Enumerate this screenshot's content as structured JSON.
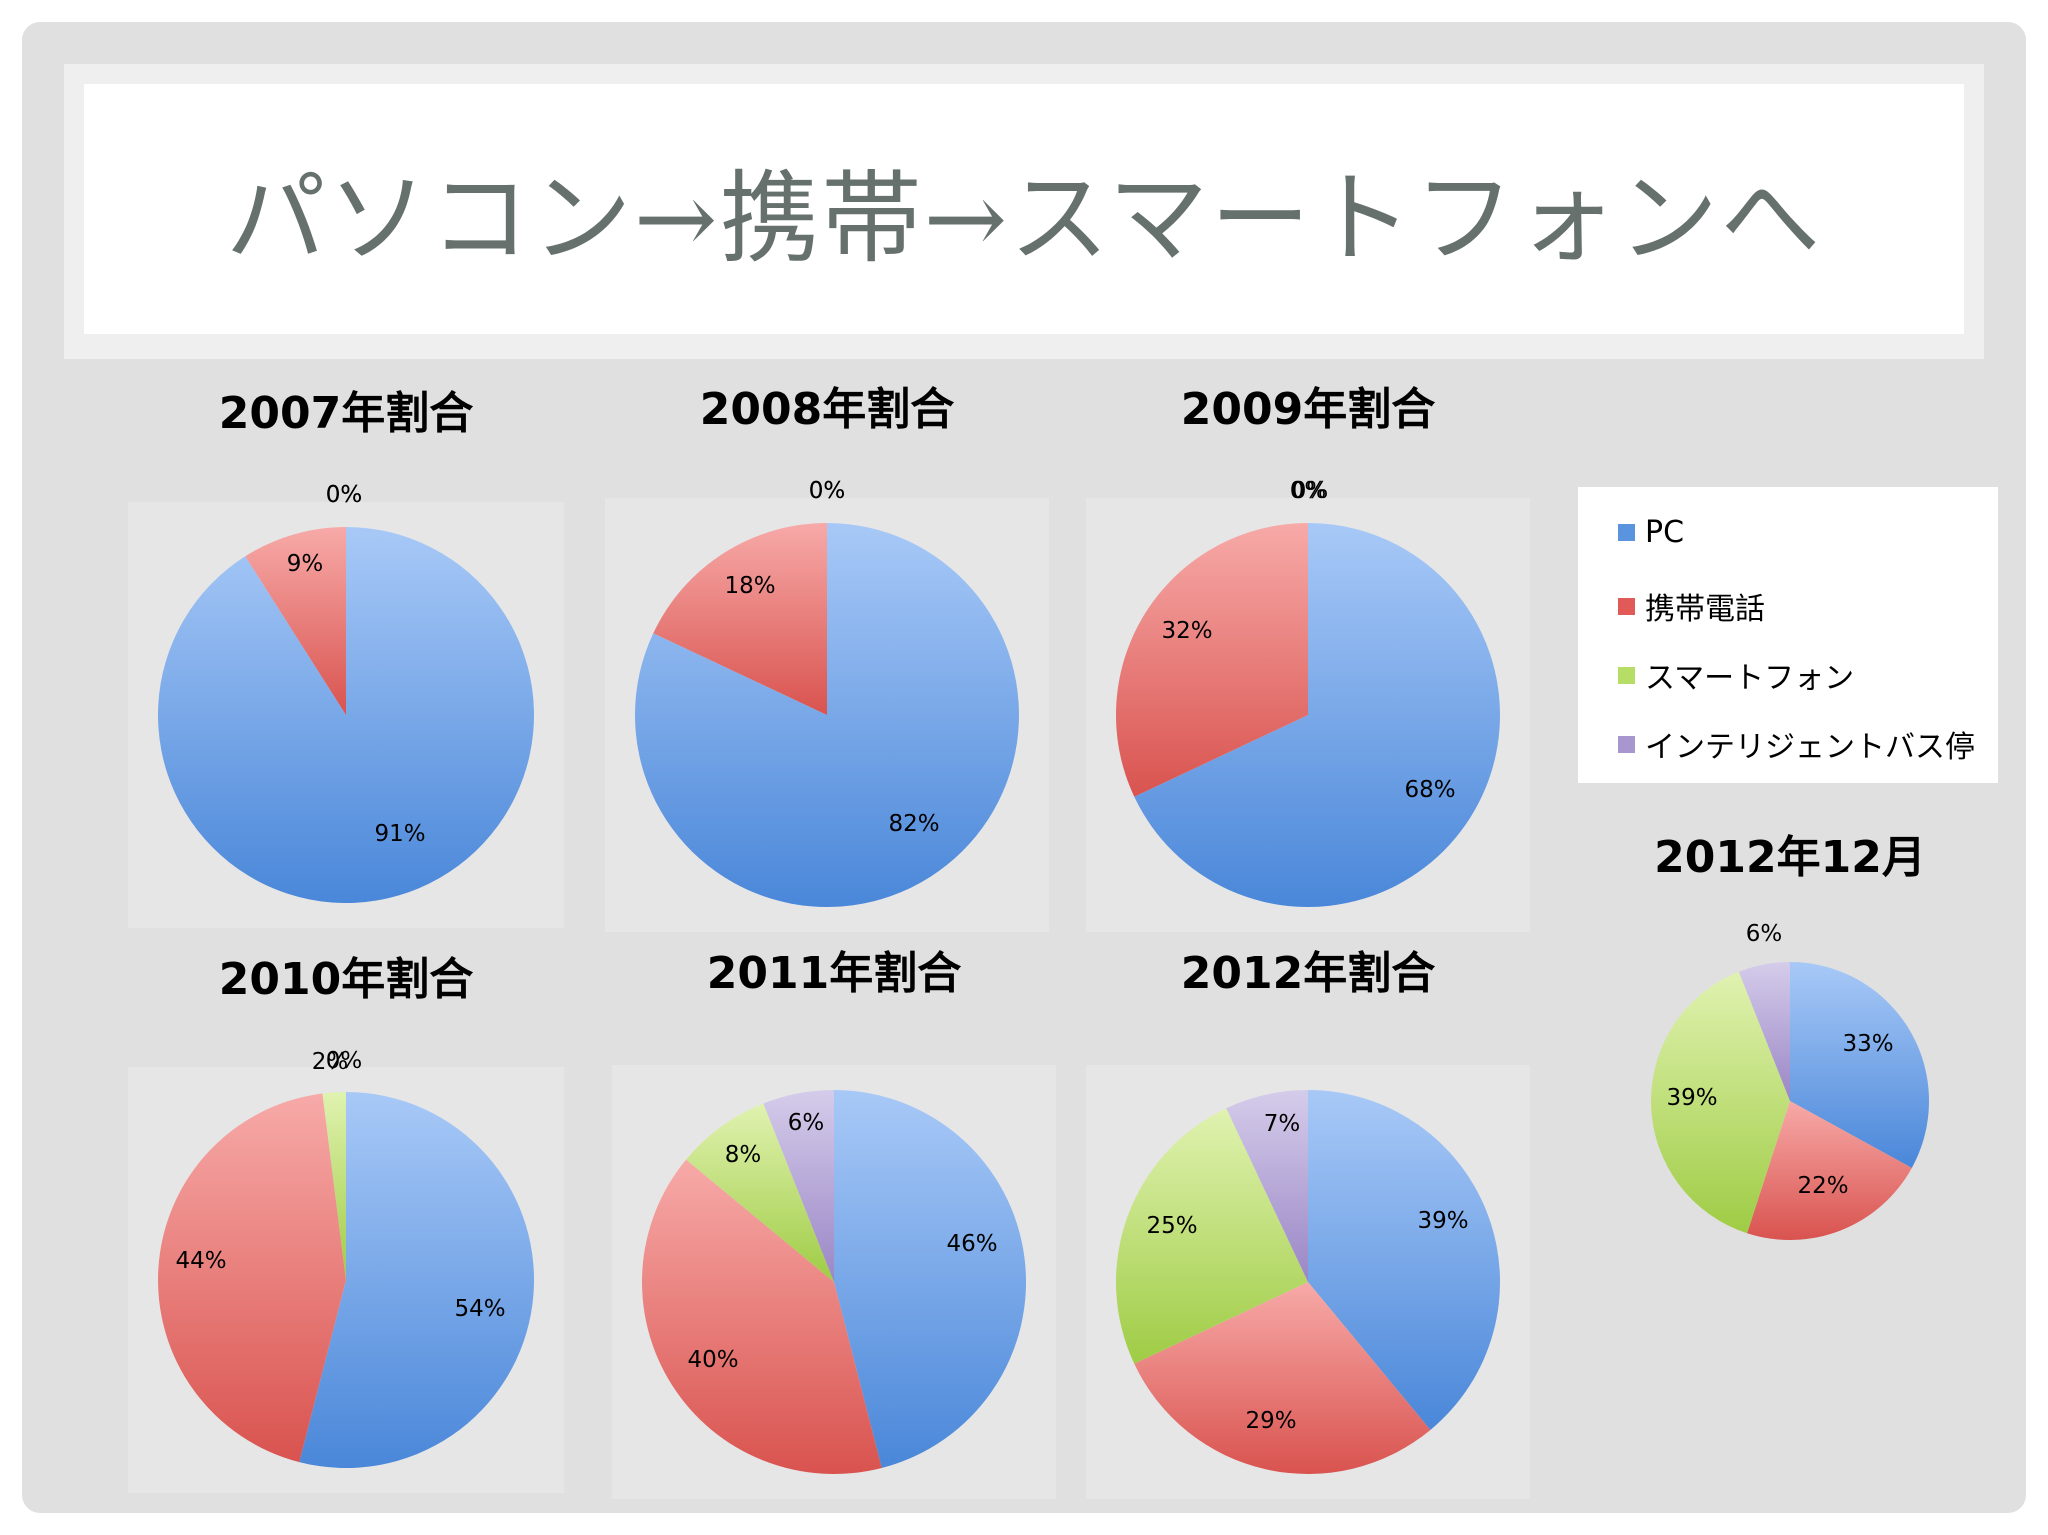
{
  "title": "パソコン→携帯→スマートフォンへ",
  "legend": [
    {
      "label": "PC",
      "color": "#5b94de"
    },
    {
      "label": "携帯電話",
      "color": "#e15a57"
    },
    {
      "label": "スマートフォン",
      "color": "#b6dd66"
    },
    {
      "label": "インテリジェントバス停",
      "color": "#a896cf"
    }
  ],
  "chart_data": [
    {
      "type": "pie",
      "title": "2007年割合",
      "categories": [
        "PC",
        "携帯電話",
        "スマートフォン",
        "インテリジェントバス停"
      ],
      "values": [
        91,
        9,
        0,
        0
      ],
      "labels": [
        "91%",
        "9%",
        "0%",
        "0%"
      ]
    },
    {
      "type": "pie",
      "title": "2008年割合",
      "categories": [
        "PC",
        "携帯電話",
        "スマートフォン",
        "インテリジェントバス停"
      ],
      "values": [
        82,
        18,
        0,
        0
      ],
      "labels": [
        "82%",
        "18%",
        "0%",
        "0%"
      ]
    },
    {
      "type": "pie",
      "title": "2009年割合",
      "categories": [
        "PC",
        "携帯電話",
        "スマートフォン",
        "インテリジェントバス停"
      ],
      "values": [
        68,
        32,
        0,
        0
      ],
      "labels": [
        "68%",
        "32%",
        "0%",
        "0%"
      ]
    },
    {
      "type": "pie",
      "title": "2010年割合",
      "categories": [
        "PC",
        "携帯電話",
        "スマートフォン",
        "インテリジェントバス停"
      ],
      "values": [
        54,
        44,
        2,
        0
      ],
      "labels": [
        "54%",
        "44%",
        "2%",
        "0%"
      ]
    },
    {
      "type": "pie",
      "title": "2011年割合",
      "categories": [
        "PC",
        "携帯電話",
        "スマートフォン",
        "インテリジェントバス停"
      ],
      "values": [
        46,
        40,
        8,
        6
      ],
      "labels": [
        "46%",
        "40%",
        "8%",
        "6%"
      ]
    },
    {
      "type": "pie",
      "title": "2012年割合",
      "categories": [
        "PC",
        "携帯電話",
        "スマートフォン",
        "インテリジェントバス停"
      ],
      "values": [
        39,
        29,
        25,
        7
      ],
      "labels": [
        "39%",
        "29%",
        "25%",
        "7%"
      ]
    },
    {
      "type": "pie",
      "title": "2012年12月",
      "categories": [
        "PC",
        "携帯電話",
        "スマートフォン",
        "インテリジェントバス停"
      ],
      "values": [
        33,
        22,
        39,
        6
      ],
      "labels": [
        "33%",
        "22%",
        "39%",
        "6%"
      ]
    }
  ]
}
